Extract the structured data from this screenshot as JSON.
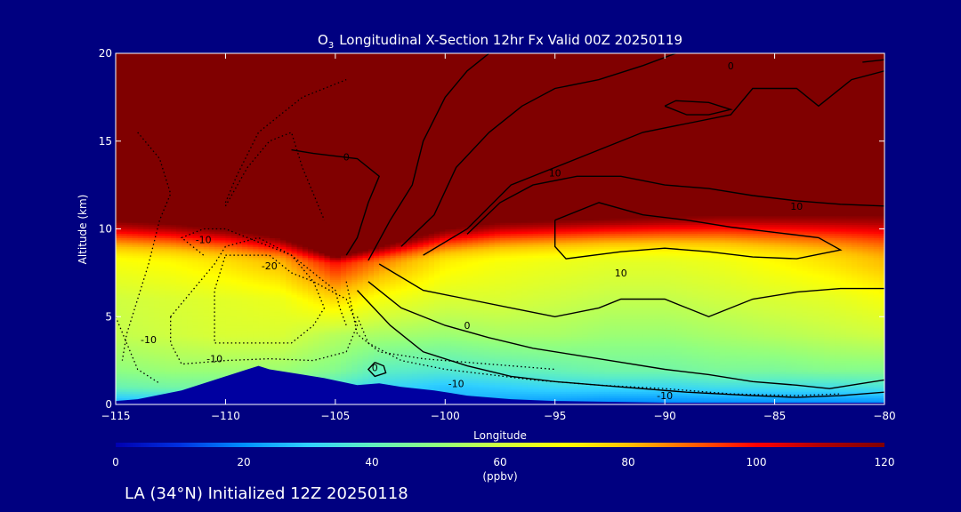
{
  "colors": {
    "background": "#000080",
    "stratosphere": "#800000",
    "terrain": "#0000a0",
    "text": "#ffffff",
    "contour": "#000000"
  },
  "colorbar": {
    "ticks": [
      "0",
      "20",
      "40",
      "60",
      "80",
      "100",
      "120"
    ],
    "unit": "(ppbv)",
    "range": [
      0,
      120
    ]
  },
  "footer": {
    "caption": "LA (34°N) Initialized 12Z 20250118"
  },
  "chart_data": {
    "type": "heatmap",
    "title": {
      "main": "Longitudinal X-Section 12hr  Fx Valid 00Z 20250119",
      "species_base": "O",
      "species_sub": "3"
    },
    "xlabel": "Longitude",
    "ylabel": "Altitude (km)",
    "xlim": [
      -115,
      -80
    ],
    "ylim": [
      0,
      20
    ],
    "x_ticks": [
      -115,
      -110,
      -105,
      -100,
      -95,
      -90,
      -85,
      -80
    ],
    "x_tick_labels": [
      "−115",
      "−110",
      "−105",
      "−100",
      "−95",
      "−90",
      "−85",
      "−80"
    ],
    "y_ticks": [
      0,
      5,
      10,
      15,
      20
    ],
    "y_tick_labels": [
      "0",
      "5",
      "10",
      "15",
      "20"
    ],
    "colorscale": [
      "#0000b0",
      "#0030e0",
      "#0090ff",
      "#30d0ff",
      "#60f0c0",
      "#90ff80",
      "#d0ff40",
      "#ffff00",
      "#ffc000",
      "#ff6000",
      "#ff0000",
      "#b00000",
      "#800000"
    ],
    "columns": [
      {
        "lon": -115.0,
        "s": 10.5,
        "v0": 22,
        "v1": 42,
        "v2": 50,
        "v4": 58,
        "v6": 60,
        "v8": 68
      },
      {
        "lon": -112.5,
        "s": 10.3,
        "v0": 24,
        "v1": 44,
        "v2": 52,
        "v4": 60,
        "v6": 62,
        "v8": 70
      },
      {
        "lon": -110.0,
        "s": 10.0,
        "v0": 28,
        "v1": 44,
        "v2": 52,
        "v4": 62,
        "v6": 64,
        "v8": 74
      },
      {
        "lon": -107.5,
        "s": 9.5,
        "v0": 30,
        "v1": 44,
        "v2": 52,
        "v4": 62,
        "v6": 66,
        "v8": 80
      },
      {
        "lon": -105.0,
        "s": 8.4,
        "v0": 32,
        "v1": 36,
        "v2": 48,
        "v4": 56,
        "v6": 76,
        "v8": 98
      },
      {
        "lon": -103.0,
        "s": 9.0,
        "v0": 34,
        "v1": 32,
        "v2": 40,
        "v4": 54,
        "v6": 68,
        "v8": 86
      },
      {
        "lon": -100.0,
        "s": 10.0,
        "v0": 26,
        "v1": 28,
        "v2": 38,
        "v4": 52,
        "v6": 62,
        "v8": 72
      },
      {
        "lon": -97.5,
        "s": 10.4,
        "v0": 22,
        "v1": 30,
        "v2": 40,
        "v4": 54,
        "v6": 62,
        "v8": 68
      },
      {
        "lon": -95.0,
        "s": 10.5,
        "v0": 20,
        "v1": 32,
        "v2": 42,
        "v4": 54,
        "v6": 60,
        "v8": 66
      },
      {
        "lon": -92.5,
        "s": 10.6,
        "v0": 18,
        "v1": 32,
        "v2": 44,
        "v4": 52,
        "v6": 58,
        "v8": 64
      },
      {
        "lon": -90.0,
        "s": 10.7,
        "v0": 18,
        "v1": 32,
        "v2": 44,
        "v4": 52,
        "v6": 58,
        "v8": 64
      },
      {
        "lon": -87.5,
        "s": 10.8,
        "v0": 18,
        "v1": 34,
        "v2": 46,
        "v4": 54,
        "v6": 60,
        "v8": 66
      },
      {
        "lon": -85.0,
        "s": 10.8,
        "v0": 18,
        "v1": 34,
        "v2": 46,
        "v4": 56,
        "v6": 62,
        "v8": 70
      },
      {
        "lon": -82.5,
        "s": 10.8,
        "v0": 18,
        "v1": 34,
        "v2": 48,
        "v4": 58,
        "v6": 64,
        "v8": 74
      },
      {
        "lon": -80.0,
        "s": 10.8,
        "v0": 18,
        "v1": 36,
        "v2": 48,
        "v4": 60,
        "v6": 68,
        "v8": 80
      }
    ],
    "terrain": [
      [
        -115,
        0.2
      ],
      [
        -114,
        0.3
      ],
      [
        -112,
        0.8
      ],
      [
        -110.5,
        1.4
      ],
      [
        -109,
        2.0
      ],
      [
        -108.5,
        2.2
      ],
      [
        -108,
        2.0
      ],
      [
        -106.5,
        1.7
      ],
      [
        -105.5,
        1.5
      ],
      [
        -104,
        1.1
      ],
      [
        -103,
        1.2
      ],
      [
        -102,
        1.0
      ],
      [
        -100.5,
        0.8
      ],
      [
        -99,
        0.5
      ],
      [
        -97,
        0.3
      ],
      [
        -95,
        0.2
      ],
      [
        -90,
        0.1
      ],
      [
        -85,
        0.1
      ],
      [
        -80,
        0.1
      ]
    ],
    "contours": [
      {
        "style": "solid",
        "points": [
          [
            -104.5,
            8.5
          ],
          [
            -104,
            9.5
          ],
          [
            -103.5,
            11.5
          ],
          [
            -103,
            13
          ],
          [
            -104,
            14
          ],
          [
            -106,
            14.3
          ],
          [
            -107,
            14.5
          ]
        ]
      },
      {
        "style": "solid",
        "points": [
          [
            -103.5,
            8.2
          ],
          [
            -102.5,
            10.5
          ],
          [
            -101.5,
            12.5
          ],
          [
            -101,
            15
          ],
          [
            -100,
            17.5
          ],
          [
            -99,
            19
          ],
          [
            -98,
            20
          ]
        ]
      },
      {
        "style": "solid",
        "points": [
          [
            -102,
            9.0
          ],
          [
            -100.5,
            10.8
          ],
          [
            -99.5,
            13.5
          ],
          [
            -98,
            15.5
          ],
          [
            -96.5,
            17
          ],
          [
            -95,
            18
          ],
          [
            -93,
            18.5
          ],
          [
            -91,
            19.3
          ],
          [
            -89.5,
            20
          ]
        ]
      },
      {
        "style": "solid",
        "points": [
          [
            -101,
            8.5
          ],
          [
            -99,
            10
          ],
          [
            -97,
            12.5
          ],
          [
            -95,
            13.5
          ],
          [
            -93,
            14.5
          ],
          [
            -91,
            15.5
          ],
          [
            -89,
            16
          ],
          [
            -87,
            16.5
          ],
          [
            -86,
            18
          ],
          [
            -84,
            18
          ],
          [
            -83,
            17
          ],
          [
            -81.5,
            18.5
          ],
          [
            -80,
            19
          ]
        ]
      },
      {
        "style": "solid",
        "points": [
          [
            -81,
            19.5
          ],
          [
            -79.5,
            19.7
          ]
        ]
      },
      {
        "style": "solid",
        "points": [
          [
            -99,
            9.7
          ],
          [
            -97.5,
            11.5
          ],
          [
            -96,
            12.5
          ],
          [
            -94,
            13
          ],
          [
            -92,
            13
          ],
          [
            -90,
            12.5
          ],
          [
            -88,
            12.3
          ],
          [
            -86,
            11.9
          ],
          [
            -84,
            11.6
          ],
          [
            -82,
            11.4
          ],
          [
            -80,
            11.3
          ]
        ]
      },
      {
        "style": "solid",
        "points": [
          [
            -95,
            10.5
          ],
          [
            -93,
            11.5
          ],
          [
            -91,
            10.8
          ],
          [
            -89,
            10.5
          ],
          [
            -87,
            10.1
          ],
          [
            -85,
            9.8
          ],
          [
            -83,
            9.5
          ],
          [
            -82,
            8.8
          ],
          [
            -84,
            8.3
          ],
          [
            -86,
            8.4
          ],
          [
            -88,
            8.7
          ],
          [
            -90,
            8.9
          ],
          [
            -92,
            8.7
          ],
          [
            -94.5,
            8.3
          ],
          [
            -95,
            9.0
          ],
          [
            -95,
            10.5
          ]
        ]
      },
      {
        "style": "solid",
        "points": [
          [
            -90,
            17
          ],
          [
            -89,
            16.5
          ],
          [
            -88,
            16.5
          ],
          [
            -87,
            16.8
          ],
          [
            -88,
            17.2
          ],
          [
            -89.5,
            17.3
          ],
          [
            -90,
            17
          ]
        ]
      },
      {
        "style": "solid",
        "points": [
          [
            -103,
            8.0
          ],
          [
            -101,
            6.5
          ],
          [
            -99,
            6.0
          ],
          [
            -97,
            5.5
          ],
          [
            -95,
            5.0
          ],
          [
            -93,
            5.5
          ],
          [
            -92,
            6.0
          ],
          [
            -90,
            6.0
          ],
          [
            -89,
            5.5
          ],
          [
            -88,
            5.0
          ],
          [
            -86,
            6.0
          ],
          [
            -84,
            6.4
          ],
          [
            -82,
            6.6
          ],
          [
            -80,
            6.6
          ]
        ]
      },
      {
        "style": "solid",
        "points": [
          [
            -103.5,
            7.0
          ],
          [
            -102,
            5.5
          ],
          [
            -100,
            4.5
          ],
          [
            -98,
            3.8
          ],
          [
            -96,
            3.2
          ],
          [
            -94,
            2.8
          ],
          [
            -92,
            2.4
          ],
          [
            -90,
            2.0
          ],
          [
            -88,
            1.7
          ],
          [
            -86,
            1.3
          ],
          [
            -84,
            1.1
          ],
          [
            -82.5,
            0.9
          ],
          [
            -81,
            1.2
          ],
          [
            -80,
            1.4
          ]
        ]
      },
      {
        "style": "solid",
        "points": [
          [
            -104,
            6.5
          ],
          [
            -102.5,
            4.5
          ],
          [
            -101,
            3.0
          ],
          [
            -99,
            2.2
          ],
          [
            -97,
            1.6
          ],
          [
            -95,
            1.3
          ],
          [
            -92,
            1.0
          ],
          [
            -89,
            0.7
          ],
          [
            -86,
            0.5
          ],
          [
            -84,
            0.4
          ],
          [
            -82,
            0.5
          ],
          [
            -80,
            0.7
          ]
        ]
      },
      {
        "style": "solid",
        "points": [
          [
            -103.2,
            2.4
          ],
          [
            -102.8,
            2.2
          ],
          [
            -102.7,
            1.8
          ],
          [
            -103.2,
            1.6
          ],
          [
            -103.5,
            2.0
          ],
          [
            -103.2,
            2.4
          ]
        ]
      },
      {
        "style": "dotted",
        "points": [
          [
            -110,
            11.5
          ],
          [
            -109.5,
            13
          ],
          [
            -108.5,
            15.5
          ],
          [
            -107.5,
            16.5
          ],
          [
            -106.5,
            17.5
          ],
          [
            -105.5,
            18
          ],
          [
            -104.5,
            18.5
          ]
        ]
      },
      {
        "style": "dotted",
        "points": [
          [
            -110,
            11.3
          ],
          [
            -109,
            13.5
          ],
          [
            -108,
            15
          ],
          [
            -107,
            15.5
          ],
          [
            -106.5,
            13.5
          ],
          [
            -106,
            12
          ],
          [
            -105.5,
            10.5
          ]
        ]
      },
      {
        "style": "dotted",
        "points": [
          [
            -111,
            8.5
          ],
          [
            -112,
            9.5
          ],
          [
            -111,
            10
          ],
          [
            -110,
            10
          ],
          [
            -109,
            9.5
          ],
          [
            -108,
            9.0
          ],
          [
            -107,
            8.5
          ],
          [
            -106,
            7.5
          ],
          [
            -105,
            6.5
          ],
          [
            -104.8,
            5.5
          ],
          [
            -104.5,
            4.5
          ]
        ]
      },
      {
        "style": "dotted",
        "points": [
          [
            -110,
            8.5
          ],
          [
            -108,
            8.5
          ],
          [
            -107,
            7.5
          ],
          [
            -106,
            7.0
          ],
          [
            -105.5,
            5.5
          ],
          [
            -106,
            4.5
          ],
          [
            -107,
            3.5
          ],
          [
            -109,
            3.5
          ],
          [
            -110.5,
            3.5
          ],
          [
            -110.5,
            6.5
          ],
          [
            -110,
            8.5
          ]
        ]
      },
      {
        "style": "dotted",
        "points": [
          [
            -112.5,
            5.0
          ],
          [
            -111.5,
            6.5
          ],
          [
            -110.5,
            8.0
          ],
          [
            -110,
            9.0
          ],
          [
            -108.5,
            9.5
          ],
          [
            -107,
            8.5
          ],
          [
            -106,
            7.0
          ],
          [
            -104.5,
            6.0
          ],
          [
            -104,
            4.5
          ],
          [
            -104.5,
            3.0
          ],
          [
            -106,
            2.5
          ],
          [
            -108,
            2.6
          ],
          [
            -110,
            2.5
          ],
          [
            -112,
            2.3
          ],
          [
            -112.5,
            3.5
          ],
          [
            -112.5,
            5.0
          ]
        ]
      },
      {
        "style": "dotted",
        "points": [
          [
            -114,
            15.5
          ],
          [
            -113,
            14
          ],
          [
            -112.5,
            12
          ],
          [
            -113,
            10.5
          ],
          [
            -113.5,
            8
          ],
          [
            -114,
            6
          ],
          [
            -114.5,
            4
          ],
          [
            -114.7,
            2.5
          ]
        ]
      },
      {
        "style": "dotted",
        "points": [
          [
            -115,
            5.0
          ],
          [
            -114.5,
            3.5
          ],
          [
            -114,
            2.0
          ],
          [
            -113,
            1.2
          ]
        ]
      },
      {
        "style": "dotted",
        "points": [
          [
            -104,
            5.0
          ],
          [
            -103.5,
            3.5
          ],
          [
            -102,
            2.5
          ],
          [
            -100,
            2.0
          ],
          [
            -98,
            1.7
          ],
          [
            -96,
            1.4
          ],
          [
            -93,
            1.1
          ],
          [
            -90,
            0.9
          ],
          [
            -87,
            0.6
          ],
          [
            -84,
            0.5
          ],
          [
            -82,
            0.6
          ]
        ]
      },
      {
        "style": "dotted",
        "points": [
          [
            -104.5,
            7.0
          ],
          [
            -104,
            4.0
          ],
          [
            -103,
            3.0
          ],
          [
            -101,
            2.6
          ],
          [
            -98,
            2.3
          ],
          [
            -95,
            2.0
          ]
        ]
      }
    ],
    "contour_labels": [
      {
        "text": "0",
        "x": -104.5,
        "y": 14.1
      },
      {
        "text": "10",
        "x": -95.0,
        "y": 13.2
      },
      {
        "text": "0",
        "x": -87.0,
        "y": 19.3
      },
      {
        "text": "10",
        "x": -84.0,
        "y": 11.3
      },
      {
        "text": "10",
        "x": -92.0,
        "y": 7.5
      },
      {
        "text": "0",
        "x": -99.0,
        "y": 4.5
      },
      {
        "text": "-10",
        "x": -111.0,
        "y": 9.4
      },
      {
        "text": "-20",
        "x": -108.0,
        "y": 7.9
      },
      {
        "text": "-10",
        "x": -113.5,
        "y": 3.7
      },
      {
        "text": "-10",
        "x": -110.5,
        "y": 2.6
      },
      {
        "text": "0",
        "x": -103.2,
        "y": 2.1
      },
      {
        "text": "-10",
        "x": -99.5,
        "y": 1.2
      },
      {
        "text": "-10",
        "x": -90.0,
        "y": 0.5
      }
    ]
  }
}
